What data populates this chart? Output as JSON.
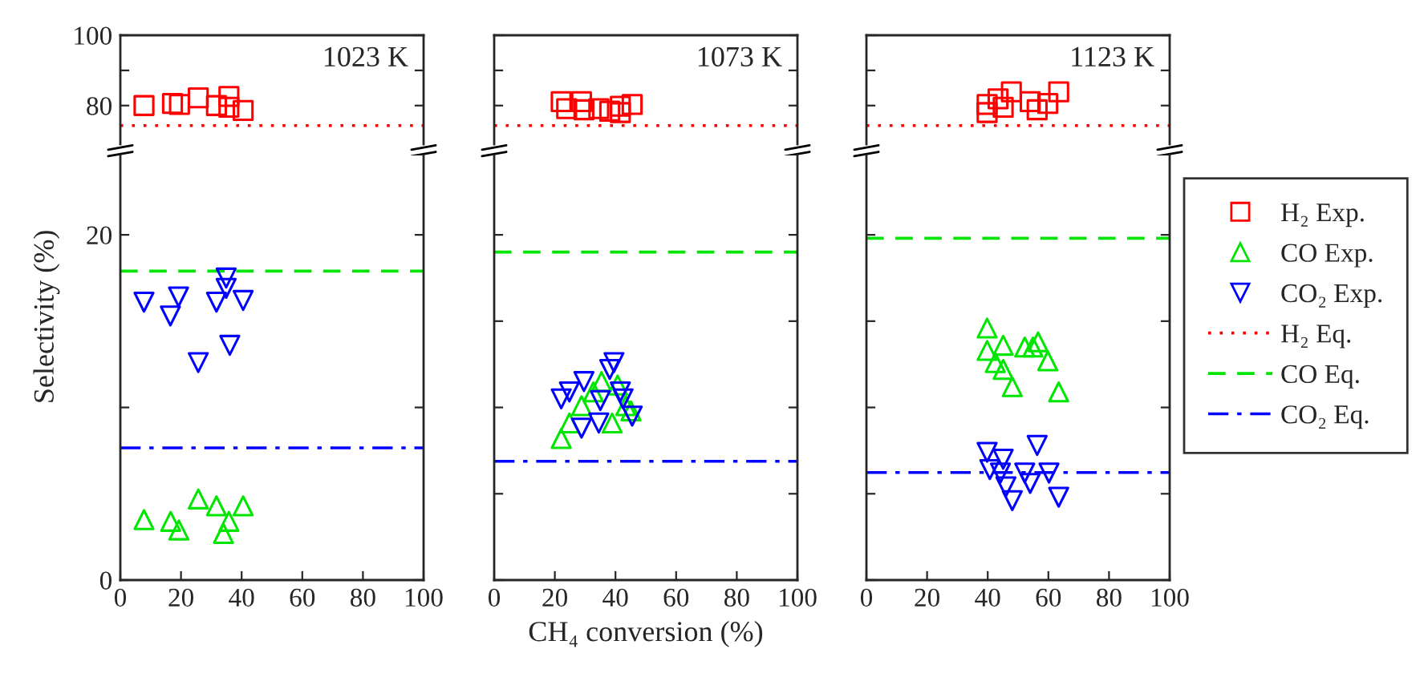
{
  "chart_data": [
    {
      "type": "scatter",
      "annotations": [
        "1023 K"
      ],
      "xlim": [
        0,
        100
      ],
      "ylim": [
        69,
        100
      ],
      "yticks": [
        80,
        {
          "value": 90,
          "label": null
        },
        100
      ],
      "tick_labels": "y",
      "legend": false,
      "series": [
        {
          "color": "#ff0000",
          "marker": "square",
          "x": [
            7.8,
            17.2,
            19.5,
            25.7,
            31.7,
            35.8,
            35.8,
            40.5
          ],
          "values": [
            80,
            80.6,
            80.3,
            82.2,
            80,
            82.6,
            79.5,
            78.6
          ]
        }
      ],
      "ref_lines": [
        {
          "axis": "y",
          "value": 74.3,
          "color": "#ff0000",
          "line_style": "dotted"
        }
      ]
    },
    {
      "type": "scatter",
      "annotations": [
        "1073 K"
      ],
      "xlim": [
        0,
        100
      ],
      "ylim": [
        69,
        100
      ],
      "yticks": [
        {
          "value": 80,
          "label": null
        },
        {
          "value": 90,
          "label": null
        },
        {
          "value": 100,
          "label": null
        }
      ],
      "tick_labels": false,
      "legend": false,
      "series": [
        {
          "color": "#ff0000",
          "marker": "square",
          "x": [
            22.1,
            23.9,
            28.8,
            29.6,
            34.5,
            38.1,
            41.6,
            41.6,
            45.5
          ],
          "values": [
            81.1,
            79.1,
            81.1,
            78.8,
            79.1,
            78.4,
            78,
            79.8,
            80.3
          ]
        }
      ],
      "ref_lines": [
        {
          "axis": "y",
          "value": 74.3,
          "color": "#ff0000",
          "line_style": "dotted"
        }
      ]
    },
    {
      "type": "scatter",
      "annotations": [
        "1123 K"
      ],
      "xlim": [
        0,
        100
      ],
      "ylim": [
        69,
        100
      ],
      "yticks": [
        {
          "value": 80,
          "label": null
        },
        {
          "value": 90,
          "label": null
        },
        {
          "value": 100,
          "label": null
        }
      ],
      "tick_labels": false,
      "legend": "right",
      "series": [
        {
          "name": "H₂ Exp.",
          "color": "#ff0000",
          "marker": "square",
          "x": [
            39.8,
            39.8,
            43.4,
            45.1,
            47.8,
            54,
            56.3,
            59.8,
            63.4
          ],
          "values": [
            78,
            80.3,
            81.9,
            79.5,
            83.9,
            81.1,
            78.8,
            80.6,
            83.9
          ]
        }
      ],
      "ref_lines": [
        {
          "axis": "y",
          "value": 74.3,
          "label": "H₂ Eq.",
          "color": "#ff0000",
          "line_style": "dotted"
        }
      ]
    },
    {
      "type": "scatter",
      "ylabel": "Selectivity (%)",
      "xlim": [
        0,
        100
      ],
      "xticks": [
        0,
        20,
        40,
        60,
        80,
        100
      ],
      "ylim": [
        0,
        24.6
      ],
      "yticks": [
        0,
        {
          "value": 10,
          "label": null
        },
        20
      ],
      "legend": false,
      "series": [
        {
          "color": "#00e600",
          "marker": "triangle",
          "x": [
            7.8,
            16.6,
            19.3,
            25.7,
            31.7,
            34,
            35.8,
            40.5
          ],
          "values": [
            3.5,
            3.4,
            2.9,
            4.7,
            4.3,
            2.7,
            3.4,
            4.3
          ]
        },
        {
          "color": "#0000ff",
          "marker": "triangle_down",
          "x": [
            7.8,
            16.5,
            19.2,
            25.7,
            31.7,
            34.9,
            34.9,
            36.1,
            40.5
          ],
          "values": [
            16.1,
            15.3,
            16.4,
            12.6,
            16.1,
            17.5,
            16.9,
            13.6,
            16.2
          ]
        }
      ],
      "ref_lines": [
        {
          "axis": "y",
          "value": 17.9,
          "color": "#00e600",
          "line_style": "dashed"
        },
        {
          "axis": "y",
          "value": 7.66,
          "color": "#0000ff",
          "line_style": "dashdot"
        }
      ]
    },
    {
      "type": "scatter",
      "xlabel": "CH₄ conversion (%)",
      "xlim": [
        0,
        100
      ],
      "xticks": [
        0,
        20,
        40,
        60,
        80,
        100
      ],
      "ylim": [
        0,
        24.6
      ],
      "yticks": [
        {
          "value": 0,
          "label": null
        },
        {
          "value": 5,
          "label": null
        },
        {
          "value": 10,
          "label": null
        },
        {
          "value": 15,
          "label": null
        },
        {
          "value": 20,
          "label": null
        }
      ],
      "tick_labels": "x",
      "legend": false,
      "series": [
        {
          "color": "#00e600",
          "marker": "triangle",
          "x": [
            22.1,
            24.8,
            28.8,
            32.7,
            35.4,
            38.9,
            40.7,
            43.4,
            45.1
          ],
          "values": [
            8.2,
            9.1,
            10.1,
            10.9,
            11.5,
            9.1,
            11.3,
            10.1,
            9.8
          ]
        },
        {
          "color": "#0000ff",
          "marker": "triangle_down",
          "x": [
            22.1,
            24.8,
            28.8,
            29.6,
            34.5,
            35,
            38.1,
            39.5,
            41.6,
            42.5,
            45.5
          ],
          "values": [
            10.5,
            10.9,
            8.8,
            11.5,
            9.1,
            10.4,
            12.2,
            12.6,
            10.9,
            10.5,
            9.5
          ]
        }
      ],
      "ref_lines": [
        {
          "axis": "y",
          "value": 19.0,
          "color": "#00e600",
          "line_style": "dashed"
        },
        {
          "axis": "y",
          "value": 6.88,
          "color": "#0000ff",
          "line_style": "dashdot"
        }
      ]
    },
    {
      "type": "scatter",
      "xlim": [
        0,
        100
      ],
      "xticks": [
        0,
        20,
        40,
        60,
        80,
        100
      ],
      "ylim": [
        0,
        24.6
      ],
      "yticks": [
        {
          "value": 0,
          "label": null
        },
        {
          "value": 5,
          "label": null
        },
        {
          "value": 10,
          "label": null
        },
        {
          "value": 15,
          "label": null
        },
        {
          "value": 20,
          "label": null
        }
      ],
      "tick_labels": "x",
      "legend": "right",
      "series": [
        {
          "name": "CO Exp.",
          "color": "#00e600",
          "marker": "triangle",
          "x": [
            39.8,
            39.8,
            45.1,
            42.5,
            45.1,
            48.1,
            52.2,
            54.9,
            56.6,
            59.8,
            63.4
          ],
          "values": [
            14.6,
            13.3,
            13.6,
            12.6,
            12.2,
            11.2,
            13.5,
            13.5,
            13.8,
            12.7,
            10.9
          ]
        },
        {
          "name": "CO₂ Exp.",
          "color": "#0000ff",
          "marker": "triangle_down",
          "x": [
            39.8,
            40.7,
            45.1,
            44.2,
            46,
            48.1,
            52.2,
            54,
            56.3,
            60.2,
            63.4
          ],
          "values": [
            7.4,
            6.4,
            7.0,
            6.2,
            5.4,
            4.6,
            6.2,
            5.6,
            7.8,
            6.2,
            4.8
          ]
        }
      ],
      "ref_lines": [
        {
          "axis": "y",
          "value": 19.8,
          "label": "CO Eq.",
          "color": "#00e600",
          "line_style": "dashed"
        },
        {
          "axis": "y",
          "value": 6.23,
          "label": "CO₂ Eq.",
          "color": "#0000ff",
          "line_style": "dashdot"
        }
      ]
    }
  ]
}
